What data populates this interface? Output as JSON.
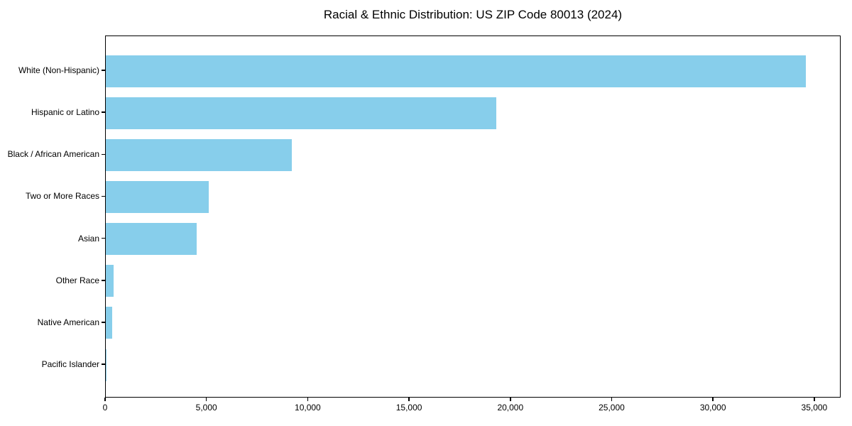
{
  "chart_data": {
    "type": "bar",
    "orientation": "horizontal",
    "title": "Racial & Ethnic Distribution: US ZIP Code 80013 (2024)",
    "categories": [
      "White (Non-Hispanic)",
      "Hispanic or Latino",
      "Black / African American",
      "Two or More Races",
      "Asian",
      "Other Race",
      "Native American",
      "Pacific Islander"
    ],
    "values": [
      34600,
      19300,
      9200,
      5100,
      4500,
      400,
      300,
      40
    ],
    "xlabel": "",
    "ylabel": "",
    "xlim": [
      0,
      36300
    ],
    "x_ticks": [
      0,
      5000,
      10000,
      15000,
      20000,
      25000,
      30000,
      35000
    ],
    "x_tick_labels": [
      "0",
      "5,000",
      "10,000",
      "15,000",
      "20,000",
      "25,000",
      "30,000",
      "35,000"
    ],
    "bar_color": "#87CEEB",
    "grid": false,
    "legend": null
  }
}
